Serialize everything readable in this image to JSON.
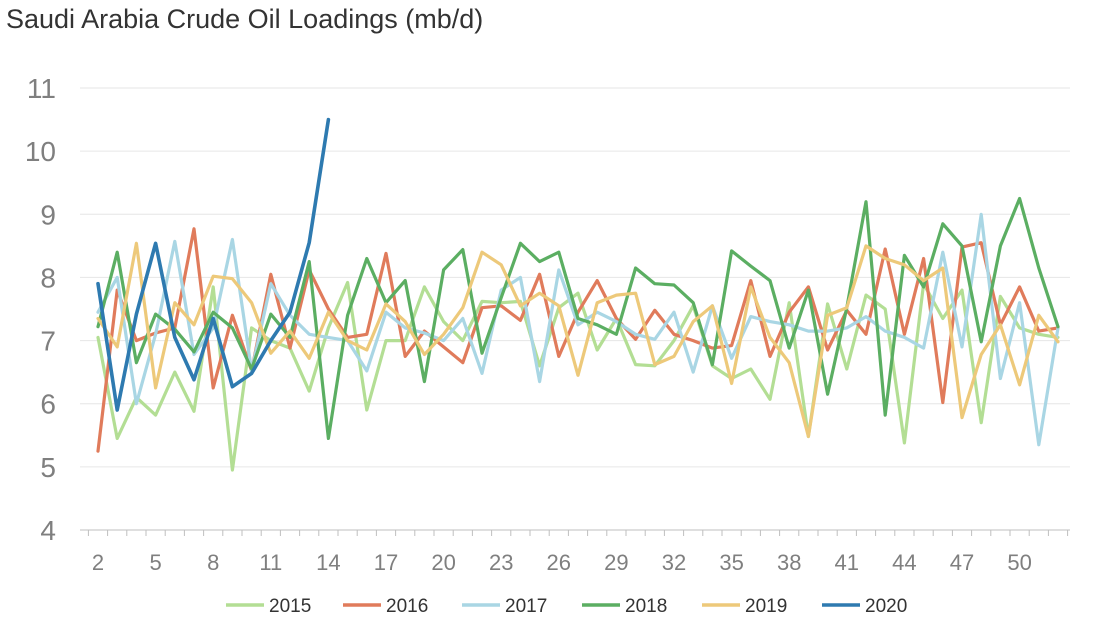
{
  "chart_data": {
    "type": "line",
    "title": "Saudi Arabia Crude Oil Loadings (mb/d)",
    "xlabel": "",
    "ylabel": "",
    "xlim": [
      2,
      52
    ],
    "ylim": [
      4,
      11
    ],
    "y_ticks": [
      4,
      5,
      6,
      7,
      8,
      9,
      10,
      11
    ],
    "x_ticks": [
      2,
      5,
      8,
      11,
      14,
      17,
      20,
      23,
      26,
      29,
      32,
      35,
      38,
      41,
      44,
      47,
      50
    ],
    "grid": true,
    "legend_position": "bottom",
    "series": [
      {
        "name": "2015",
        "color": "#b3de94",
        "x": [
          2,
          3,
          4,
          5,
          6,
          7,
          8,
          9,
          10,
          11,
          12,
          13,
          14,
          15,
          16,
          17,
          18,
          19,
          20,
          21,
          22,
          23,
          24,
          25,
          26,
          27,
          28,
          29,
          30,
          31,
          32,
          33,
          34,
          35,
          36,
          37,
          38,
          39,
          40,
          41,
          42,
          43,
          44,
          45,
          46,
          47,
          48,
          49,
          50,
          51,
          52
        ],
        "values": [
          7.05,
          5.45,
          6.1,
          5.82,
          6.5,
          5.88,
          7.85,
          4.95,
          7.2,
          7.0,
          6.88,
          6.2,
          7.2,
          7.92,
          5.9,
          7.0,
          7.0,
          7.85,
          7.3,
          7.0,
          7.62,
          7.6,
          7.62,
          6.6,
          7.52,
          7.75,
          6.85,
          7.35,
          6.62,
          6.6,
          7.0,
          7.55,
          6.6,
          6.4,
          6.55,
          6.07,
          7.6,
          5.48,
          7.58,
          6.55,
          7.72,
          7.5,
          5.38,
          7.9,
          7.35,
          7.8,
          5.7,
          7.7,
          7.2,
          7.1,
          7.05
        ]
      },
      {
        "name": "2016",
        "color": "#e07b5b",
        "x": [
          2,
          3,
          4,
          5,
          6,
          7,
          8,
          9,
          10,
          11,
          12,
          13,
          14,
          15,
          16,
          17,
          18,
          19,
          20,
          21,
          22,
          23,
          24,
          25,
          26,
          27,
          28,
          29,
          30,
          31,
          32,
          33,
          34,
          35,
          36,
          37,
          38,
          39,
          40,
          41,
          42,
          43,
          44,
          45,
          46,
          47,
          48,
          49,
          50,
          51,
          52
        ],
        "values": [
          5.25,
          7.8,
          7.0,
          7.12,
          7.2,
          8.77,
          6.25,
          7.4,
          6.52,
          8.05,
          6.88,
          8.12,
          7.5,
          7.05,
          7.1,
          8.38,
          6.75,
          7.15,
          6.9,
          6.65,
          7.52,
          7.55,
          7.32,
          8.05,
          6.75,
          7.45,
          7.95,
          7.35,
          7.02,
          7.48,
          7.1,
          7.0,
          6.88,
          6.92,
          7.95,
          6.75,
          7.45,
          7.85,
          6.85,
          7.48,
          7.1,
          8.45,
          7.1,
          8.3,
          6.02,
          8.48,
          8.55,
          7.25,
          7.85,
          7.15,
          7.2
        ]
      },
      {
        "name": "2017",
        "color": "#a9d6e4",
        "x": [
          2,
          3,
          4,
          5,
          6,
          7,
          8,
          9,
          10,
          11,
          12,
          13,
          14,
          15,
          16,
          17,
          18,
          19,
          20,
          21,
          22,
          23,
          24,
          25,
          26,
          27,
          28,
          29,
          30,
          31,
          32,
          33,
          34,
          35,
          36,
          37,
          38,
          39,
          40,
          41,
          42,
          43,
          44,
          45,
          46,
          47,
          48,
          49,
          50,
          51,
          52
        ],
        "values": [
          7.45,
          8.0,
          6.0,
          7.1,
          8.57,
          6.78,
          7.2,
          8.6,
          6.52,
          7.9,
          7.4,
          7.1,
          7.05,
          7.0,
          6.52,
          7.45,
          7.2,
          7.12,
          7.0,
          7.35,
          6.48,
          7.8,
          8.0,
          6.35,
          8.12,
          7.25,
          7.45,
          7.3,
          7.1,
          7.02,
          7.45,
          6.5,
          7.55,
          6.72,
          7.38,
          7.3,
          7.25,
          7.15,
          7.15,
          7.2,
          7.38,
          7.15,
          7.05,
          6.88,
          8.4,
          6.9,
          9.0,
          6.4,
          7.6,
          5.35,
          7.2
        ]
      },
      {
        "name": "2018",
        "color": "#5bae62",
        "x": [
          2,
          3,
          4,
          5,
          6,
          7,
          8,
          9,
          10,
          11,
          12,
          13,
          14,
          15,
          16,
          17,
          18,
          19,
          20,
          21,
          22,
          23,
          24,
          25,
          26,
          27,
          28,
          29,
          30,
          31,
          32,
          33,
          34,
          35,
          36,
          37,
          38,
          39,
          40,
          41,
          42,
          43,
          44,
          45,
          46,
          47,
          48,
          49,
          50,
          51,
          52
        ],
        "values": [
          7.22,
          8.4,
          6.65,
          7.42,
          7.18,
          6.82,
          7.45,
          7.2,
          6.55,
          7.42,
          7.05,
          8.25,
          5.45,
          7.4,
          8.3,
          7.6,
          7.95,
          6.35,
          8.12,
          8.44,
          6.8,
          7.68,
          8.54,
          8.25,
          8.4,
          7.35,
          7.25,
          7.1,
          8.15,
          7.9,
          7.88,
          7.6,
          6.62,
          8.42,
          8.18,
          7.95,
          6.88,
          7.8,
          6.15,
          7.52,
          9.2,
          5.82,
          8.35,
          7.85,
          8.85,
          8.5,
          6.98,
          8.5,
          9.25,
          8.15,
          7.22
        ]
      },
      {
        "name": "2019",
        "color": "#edc97a",
        "x": [
          2,
          3,
          4,
          5,
          6,
          7,
          8,
          9,
          10,
          11,
          12,
          13,
          14,
          15,
          16,
          17,
          18,
          19,
          20,
          21,
          22,
          23,
          24,
          25,
          26,
          27,
          28,
          29,
          30,
          31,
          32,
          33,
          34,
          35,
          36,
          37,
          38,
          39,
          40,
          41,
          42,
          43,
          44,
          45,
          46,
          47,
          48,
          49,
          50,
          51,
          52
        ],
        "values": [
          7.35,
          6.9,
          8.54,
          6.25,
          7.6,
          7.25,
          8.02,
          7.98,
          7.6,
          6.8,
          7.15,
          6.72,
          7.45,
          7.0,
          6.85,
          7.58,
          7.3,
          6.78,
          7.1,
          7.52,
          8.4,
          8.2,
          7.55,
          7.75,
          7.55,
          6.45,
          7.6,
          7.72,
          7.75,
          6.62,
          6.75,
          7.3,
          7.55,
          6.32,
          7.85,
          7.05,
          6.65,
          5.48,
          7.4,
          7.52,
          8.5,
          8.3,
          8.2,
          7.95,
          8.15,
          5.78,
          6.78,
          7.25,
          6.3,
          7.4,
          6.98
        ]
      },
      {
        "name": "2020",
        "color": "#2e7ab0",
        "x": [
          2,
          3,
          4,
          5,
          6,
          7,
          8,
          9,
          10,
          11,
          12,
          13,
          14
        ],
        "values": [
          7.9,
          5.9,
          7.42,
          8.54,
          7.05,
          6.38,
          7.35,
          6.27,
          6.48,
          7.0,
          7.45,
          8.55,
          10.5
        ]
      }
    ]
  }
}
